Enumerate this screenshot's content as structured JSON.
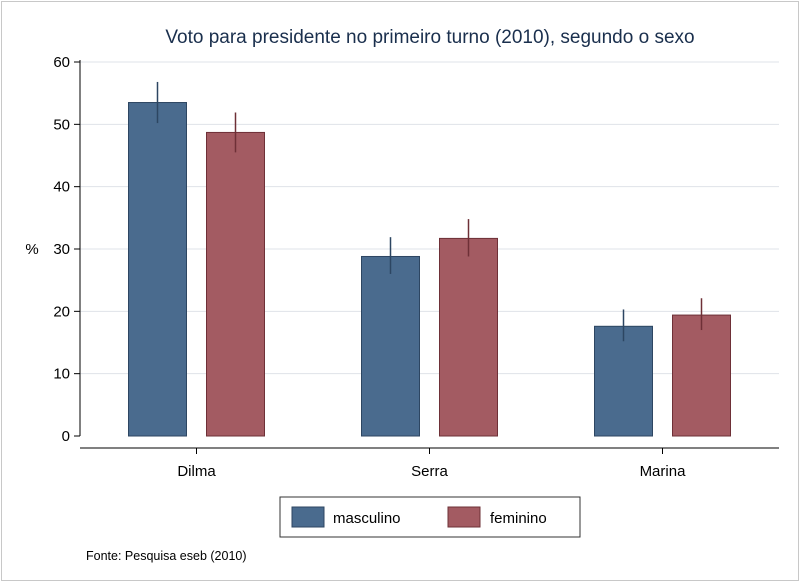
{
  "chart_data": {
    "type": "bar",
    "title": "Voto para presidente no primeiro turno (2010), segundo o sexo",
    "ylabel": "%",
    "xlabel": "",
    "ylim": [
      0,
      60
    ],
    "yticks": [
      0,
      10,
      20,
      30,
      40,
      50,
      60
    ],
    "grid": true,
    "categories": [
      "Dilma",
      "Serra",
      "Marina"
    ],
    "series": [
      {
        "name": "masculino",
        "color": "#4a6b8e",
        "edge": "#2d4662",
        "values": [
          53.5,
          28.8,
          17.6
        ],
        "ci_low": [
          50.2,
          26.0,
          15.2
        ],
        "ci_high": [
          56.8,
          31.9,
          20.3
        ]
      },
      {
        "name": "feminino",
        "color": "#a35b62",
        "edge": "#6e3037",
        "values": [
          48.7,
          31.7,
          19.4
        ],
        "ci_low": [
          45.5,
          28.8,
          17.0
        ],
        "ci_high": [
          51.9,
          34.8,
          22.1
        ]
      }
    ],
    "legend_position": "bottom"
  },
  "source_note": "Fonte: Pesquisa eseb (2010)"
}
